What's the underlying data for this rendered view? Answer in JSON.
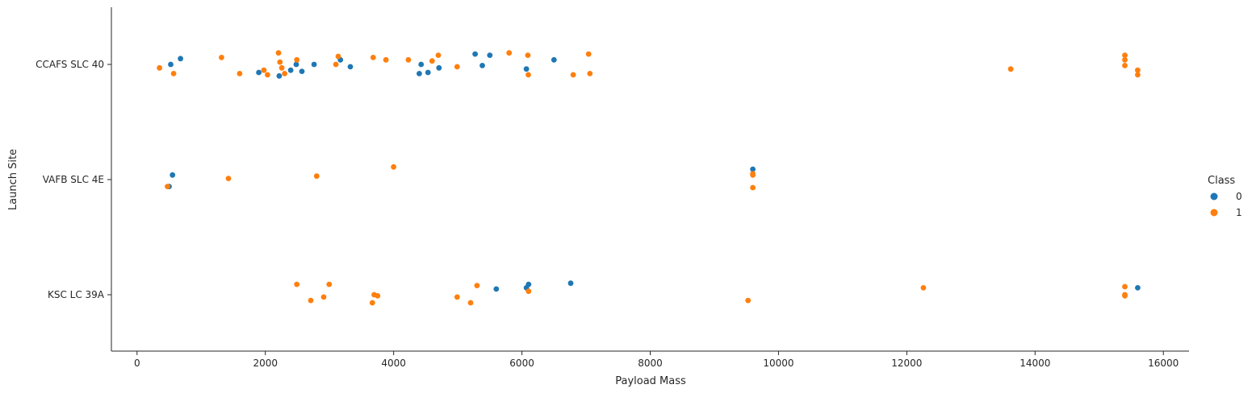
{
  "chart_data": {
    "type": "scatter",
    "title": "",
    "xlabel": "Payload Mass",
    "ylabel": "Launch Site",
    "xlim": [
      -400,
      16400
    ],
    "xticks": [
      0,
      2000,
      4000,
      6000,
      8000,
      10000,
      12000,
      14000,
      16000
    ],
    "categories": [
      "CCAFS SLC 40",
      "VAFB SLC 4E",
      "KSC LC 39A"
    ],
    "legend": {
      "title": "Class",
      "placement": "right",
      "entries": [
        {
          "label": "0",
          "color": "#1f77b4"
        },
        {
          "label": "1",
          "color": "#ff7f0e"
        }
      ]
    },
    "grid": false,
    "series": [
      {
        "name": "0",
        "color": "#1f77b4",
        "points": [
          {
            "x": 525,
            "y": "CCAFS SLC 40",
            "jitter": 0.0
          },
          {
            "x": 677,
            "y": "CCAFS SLC 40",
            "jitter": 0.05
          },
          {
            "x": 1898,
            "y": "CCAFS SLC 40",
            "jitter": -0.07
          },
          {
            "x": 2216,
            "y": "CCAFS SLC 40",
            "jitter": -0.1
          },
          {
            "x": 2395,
            "y": "CCAFS SLC 40",
            "jitter": -0.05
          },
          {
            "x": 2482,
            "y": "CCAFS SLC 40",
            "jitter": 0.0
          },
          {
            "x": 2570,
            "y": "CCAFS SLC 40",
            "jitter": -0.06
          },
          {
            "x": 2760,
            "y": "CCAFS SLC 40",
            "jitter": 0.0
          },
          {
            "x": 3170,
            "y": "CCAFS SLC 40",
            "jitter": 0.04
          },
          {
            "x": 3325,
            "y": "CCAFS SLC 40",
            "jitter": -0.02
          },
          {
            "x": 4400,
            "y": "CCAFS SLC 40",
            "jitter": -0.08
          },
          {
            "x": 4428,
            "y": "CCAFS SLC 40",
            "jitter": 0.0
          },
          {
            "x": 4535,
            "y": "CCAFS SLC 40",
            "jitter": -0.07
          },
          {
            "x": 4707,
            "y": "CCAFS SLC 40",
            "jitter": -0.03
          },
          {
            "x": 5271,
            "y": "CCAFS SLC 40",
            "jitter": 0.09
          },
          {
            "x": 5383,
            "y": "CCAFS SLC 40",
            "jitter": -0.01
          },
          {
            "x": 5500,
            "y": "CCAFS SLC 40",
            "jitter": 0.08
          },
          {
            "x": 6070,
            "y": "CCAFS SLC 40",
            "jitter": -0.04
          },
          {
            "x": 6500,
            "y": "CCAFS SLC 40",
            "jitter": 0.04
          },
          {
            "x": 553,
            "y": "VAFB SLC 4E",
            "jitter": 0.04
          },
          {
            "x": 500,
            "y": "VAFB SLC 4E",
            "jitter": -0.06
          },
          {
            "x": 9600,
            "y": "VAFB SLC 4E",
            "jitter": 0.09
          },
          {
            "x": 5600,
            "y": "KSC LC 39A",
            "jitter": 0.05
          },
          {
            "x": 6070,
            "y": "KSC LC 39A",
            "jitter": 0.06
          },
          {
            "x": 6104,
            "y": "KSC LC 39A",
            "jitter": 0.09
          },
          {
            "x": 6761,
            "y": "KSC LC 39A",
            "jitter": 0.1
          },
          {
            "x": 15600,
            "y": "KSC LC 39A",
            "jitter": 0.06
          }
        ]
      },
      {
        "name": "1",
        "color": "#ff7f0e",
        "points": [
          {
            "x": 350,
            "y": "CCAFS SLC 40",
            "jitter": -0.03
          },
          {
            "x": 570,
            "y": "CCAFS SLC 40",
            "jitter": -0.08
          },
          {
            "x": 1316,
            "y": "CCAFS SLC 40",
            "jitter": 0.06
          },
          {
            "x": 1600,
            "y": "CCAFS SLC 40",
            "jitter": -0.08
          },
          {
            "x": 1977,
            "y": "CCAFS SLC 40",
            "jitter": -0.05
          },
          {
            "x": 2034,
            "y": "CCAFS SLC 40",
            "jitter": -0.09
          },
          {
            "x": 2205,
            "y": "CCAFS SLC 40",
            "jitter": 0.1
          },
          {
            "x": 2227,
            "y": "CCAFS SLC 40",
            "jitter": 0.02
          },
          {
            "x": 2257,
            "y": "CCAFS SLC 40",
            "jitter": -0.03
          },
          {
            "x": 2300,
            "y": "CCAFS SLC 40",
            "jitter": -0.08
          },
          {
            "x": 2490,
            "y": "CCAFS SLC 40",
            "jitter": 0.04
          },
          {
            "x": 3100,
            "y": "CCAFS SLC 40",
            "jitter": 0.0
          },
          {
            "x": 3136,
            "y": "CCAFS SLC 40",
            "jitter": 0.07
          },
          {
            "x": 3681,
            "y": "CCAFS SLC 40",
            "jitter": 0.06
          },
          {
            "x": 3880,
            "y": "CCAFS SLC 40",
            "jitter": 0.04
          },
          {
            "x": 4230,
            "y": "CCAFS SLC 40",
            "jitter": 0.04
          },
          {
            "x": 4600,
            "y": "CCAFS SLC 40",
            "jitter": 0.03
          },
          {
            "x": 4696,
            "y": "CCAFS SLC 40",
            "jitter": 0.08
          },
          {
            "x": 4990,
            "y": "CCAFS SLC 40",
            "jitter": -0.02
          },
          {
            "x": 5800,
            "y": "CCAFS SLC 40",
            "jitter": 0.1
          },
          {
            "x": 6092,
            "y": "CCAFS SLC 40",
            "jitter": 0.08
          },
          {
            "x": 6100,
            "y": "CCAFS SLC 40",
            "jitter": -0.09
          },
          {
            "x": 6800,
            "y": "CCAFS SLC 40",
            "jitter": -0.09
          },
          {
            "x": 7040,
            "y": "CCAFS SLC 40",
            "jitter": 0.09
          },
          {
            "x": 7060,
            "y": "CCAFS SLC 40",
            "jitter": -0.08
          },
          {
            "x": 13620,
            "y": "CCAFS SLC 40",
            "jitter": -0.04
          },
          {
            "x": 15400,
            "y": "CCAFS SLC 40",
            "jitter": 0.08
          },
          {
            "x": 15400,
            "y": "CCAFS SLC 40",
            "jitter": 0.04
          },
          {
            "x": 15400,
            "y": "CCAFS SLC 40",
            "jitter": -0.01
          },
          {
            "x": 15600,
            "y": "CCAFS SLC 40",
            "jitter": -0.05
          },
          {
            "x": 15600,
            "y": "CCAFS SLC 40",
            "jitter": -0.09
          },
          {
            "x": 475,
            "y": "VAFB SLC 4E",
            "jitter": -0.06
          },
          {
            "x": 1425,
            "y": "VAFB SLC 4E",
            "jitter": 0.01
          },
          {
            "x": 2800,
            "y": "VAFB SLC 4E",
            "jitter": 0.03
          },
          {
            "x": 4000,
            "y": "VAFB SLC 4E",
            "jitter": 0.11
          },
          {
            "x": 9600,
            "y": "VAFB SLC 4E",
            "jitter": 0.05
          },
          {
            "x": 9600,
            "y": "VAFB SLC 4E",
            "jitter": 0.04
          },
          {
            "x": 9600,
            "y": "VAFB SLC 4E",
            "jitter": -0.07
          },
          {
            "x": 2490,
            "y": "KSC LC 39A",
            "jitter": 0.09
          },
          {
            "x": 2708,
            "y": "KSC LC 39A",
            "jitter": -0.05
          },
          {
            "x": 2910,
            "y": "KSC LC 39A",
            "jitter": -0.02
          },
          {
            "x": 2995,
            "y": "KSC LC 39A",
            "jitter": 0.09
          },
          {
            "x": 3669,
            "y": "KSC LC 39A",
            "jitter": -0.07
          },
          {
            "x": 3696,
            "y": "KSC LC 39A",
            "jitter": 0.0
          },
          {
            "x": 3750,
            "y": "KSC LC 39A",
            "jitter": -0.01
          },
          {
            "x": 4990,
            "y": "KSC LC 39A",
            "jitter": -0.02
          },
          {
            "x": 5200,
            "y": "KSC LC 39A",
            "jitter": -0.07
          },
          {
            "x": 5300,
            "y": "KSC LC 39A",
            "jitter": 0.08
          },
          {
            "x": 6104,
            "y": "KSC LC 39A",
            "jitter": 0.03
          },
          {
            "x": 9525,
            "y": "KSC LC 39A",
            "jitter": -0.05
          },
          {
            "x": 12259,
            "y": "KSC LC 39A",
            "jitter": 0.06
          },
          {
            "x": 15400,
            "y": "KSC LC 39A",
            "jitter": 0.07
          },
          {
            "x": 15400,
            "y": "KSC LC 39A",
            "jitter": 0.0
          },
          {
            "x": 15400,
            "y": "KSC LC 39A",
            "jitter": -0.01
          }
        ]
      }
    ]
  }
}
